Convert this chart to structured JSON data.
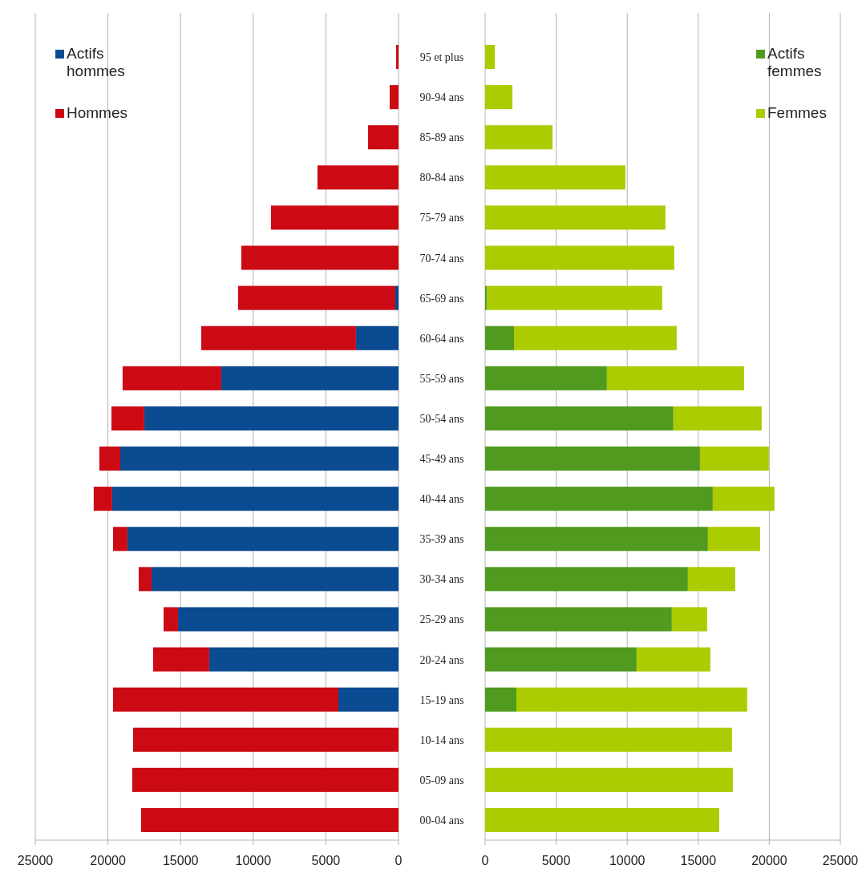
{
  "chart_data": [
    {
      "type": "bar",
      "orientation": "horizontal",
      "stacked": true,
      "categories": [
        "95 et plus",
        "90-94 ans",
        "85-89 ans",
        "80-84 ans",
        "75-79 ans",
        "70-74 ans",
        "65-69 ans",
        "60-64 ans",
        "55-59 ans",
        "50-54 ans",
        "45-49 ans",
        "40-44 ans",
        "35-39 ans",
        "30-34 ans",
        "25-29 ans",
        "20-24 ans",
        "15-19 ans",
        "10-14 ans",
        "05-09 ans",
        "00-04 ans"
      ],
      "series": [
        {
          "name": "Actifs hommes",
          "color": "#0b4b91",
          "values": [
            null,
            null,
            null,
            null,
            null,
            null,
            220,
            2930,
            12200,
            17500,
            19150,
            19710,
            18660,
            17000,
            15180,
            13030,
            4140,
            null,
            null,
            null
          ]
        },
        {
          "name": "Hommes",
          "color": "#cc0a14",
          "values": [
            170,
            610,
            2100,
            5580,
            8780,
            10820,
            10820,
            10650,
            6790,
            2260,
            1440,
            1270,
            990,
            880,
            990,
            3860,
            15510,
            18270,
            18330,
            17720
          ]
        }
      ],
      "xlim": [
        25000,
        0
      ],
      "xticks": [
        25000,
        20000,
        15000,
        10000,
        5000,
        0
      ],
      "grid": "x",
      "legend": "top left"
    },
    {
      "type": "bar",
      "orientation": "horizontal",
      "stacked": true,
      "categories": [
        null,
        null,
        null,
        null,
        null,
        null,
        null,
        null,
        null,
        null,
        null,
        null,
        null,
        null,
        null,
        null,
        null,
        null,
        null,
        null
      ],
      "series": [
        {
          "name": "Actifs femmes",
          "color": "#4f9a1f",
          "values": [
            null,
            null,
            null,
            null,
            null,
            null,
            110,
            2030,
            8570,
            13250,
            15120,
            16020,
            15680,
            14270,
            13140,
            10660,
            2200,
            null,
            null,
            null
          ]
        },
        {
          "name": "Femmes",
          "color": "#aacc00",
          "values": [
            680,
            1920,
            4740,
            9870,
            12690,
            13310,
            12350,
            11450,
            9650,
            6210,
            4850,
            4340,
            3670,
            3330,
            2480,
            5190,
            16240,
            17370,
            17430,
            16470
          ]
        }
      ],
      "xlim": [
        0,
        25000
      ],
      "xticks": [
        0,
        5000,
        10000,
        15000,
        20000,
        25000
      ],
      "grid": "x",
      "legend": "top right",
      "tick_labels": "x"
    }
  ]
}
